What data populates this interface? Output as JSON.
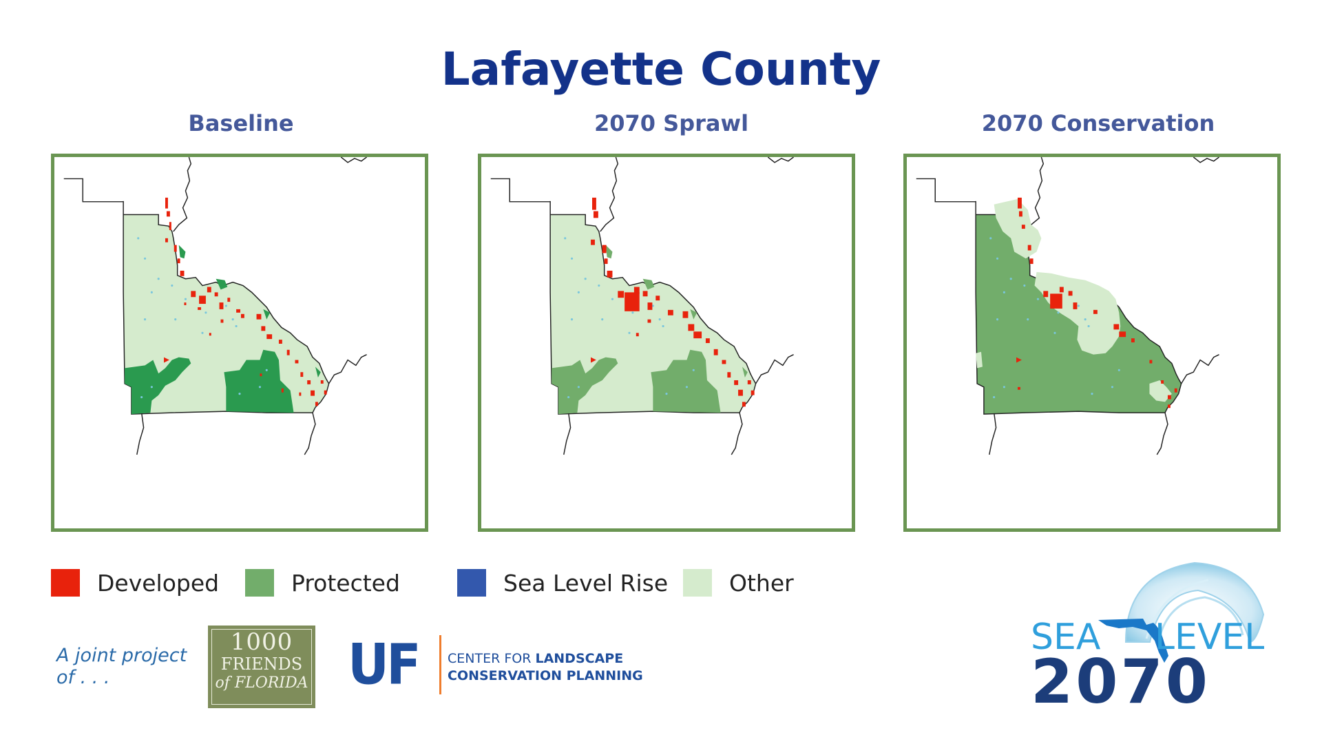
{
  "title": "Lafayette County",
  "panels": [
    {
      "label": "Baseline",
      "scenario": "baseline"
    },
    {
      "label": "2070 Sprawl",
      "scenario": "sprawl"
    },
    {
      "label": "2070 Conservation",
      "scenario": "conservation"
    }
  ],
  "legend": [
    {
      "label": "Developed",
      "color": "#e8220c"
    },
    {
      "label": "Protected",
      "color": "#72ad6b"
    },
    {
      "label": "Sea Level Rise",
      "color": "#3358ad"
    },
    {
      "label": "Other",
      "color": "#d5ebcd"
    }
  ],
  "colors": {
    "protected_baseline": "#2a9a4f",
    "protected_2070": "#72ad6b",
    "other": "#d5ebcd",
    "developed": "#e8220c",
    "water": "#79c6dd",
    "frame": "#6a9552"
  },
  "footer": {
    "joint_project": "A joint project of . . .",
    "friends_line1": "1000",
    "friends_line2": "FRIENDS",
    "friends_line3": "of FLORIDA",
    "uf": "UF",
    "uf_center_line1_a": "CENTER FOR ",
    "uf_center_line1_b": "LANDSCAPE",
    "uf_center_line2": "CONSERVATION PLANNING"
  },
  "logo": {
    "sea": "SEA",
    "level": "LEVEL",
    "year": "2070",
    "icons": [
      "florida-icon",
      "wave-icon"
    ]
  }
}
